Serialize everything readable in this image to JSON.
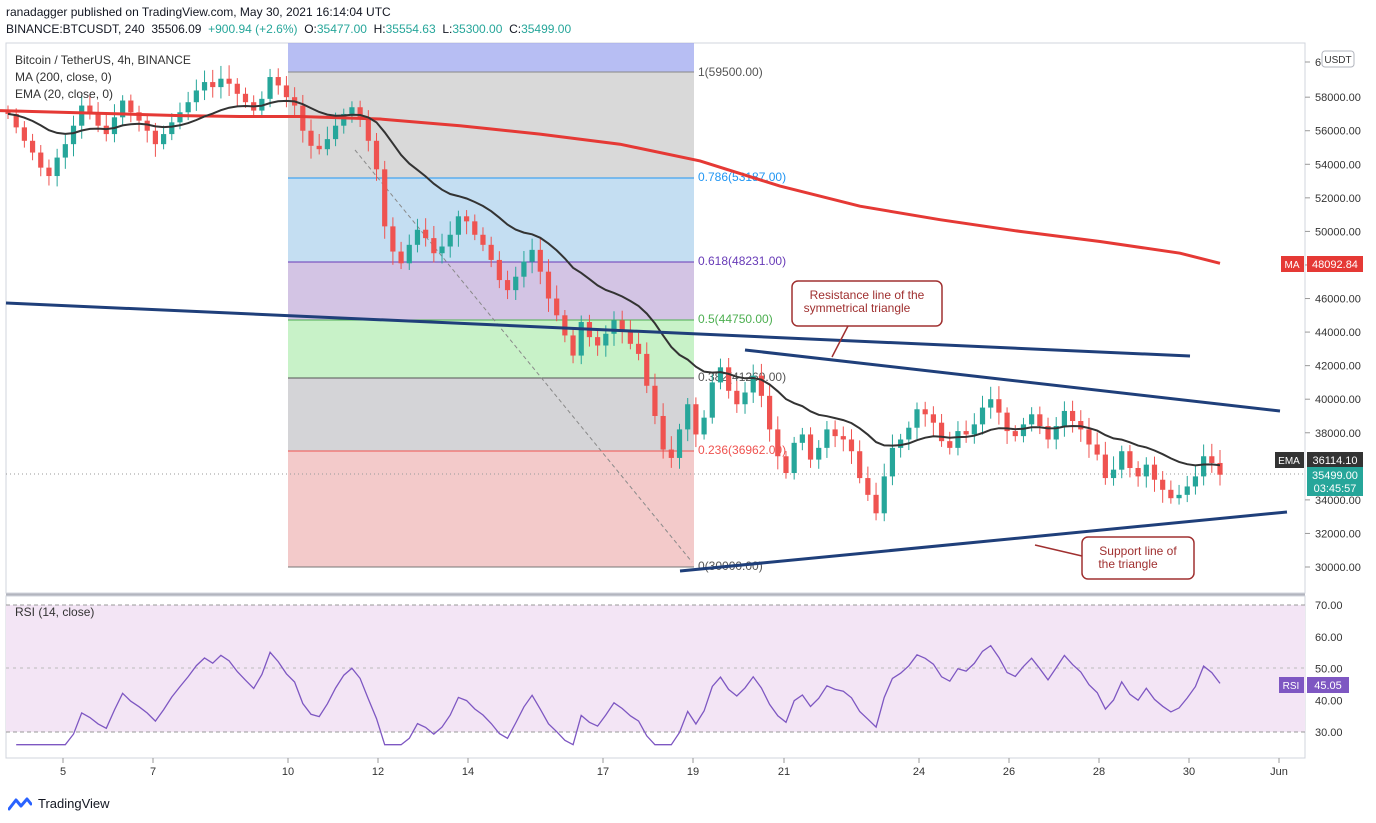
{
  "header": {
    "publisher_line": "ranadagger published on TradingView.com, May 30, 2021 16:14:04 UTC",
    "symbol": "BINANCE:BTCUSDT, 240",
    "last": "35506.09",
    "change": "+900.94 (+2.6%)",
    "o_label": "O:",
    "o": "35477.00",
    "h_label": "H:",
    "h": "35554.63",
    "l_label": "L:",
    "l": "35300.00",
    "c_label": "C:",
    "c": "35499.00"
  },
  "legend": {
    "title": "Bitcoin / TetherUS, 4h, BINANCE",
    "ma": "MA (200, close, 0)",
    "ema": "EMA (20, close, 0)",
    "rsi": "RSI (14, close)"
  },
  "colors": {
    "up": "#26a69a",
    "down": "#ef5350",
    "ma": "#e53935",
    "ema": "#333333",
    "trendline": "#1f3f7a",
    "rsi_line": "#7e57c2",
    "rsi_band": "#f3e5f5"
  },
  "price_axis": {
    "unit": "USDT",
    "ticks": [
      "6",
      "58000.00",
      "56000.00",
      "54000.00",
      "52000.00",
      "50000.00",
      "48000.00",
      "46000.00",
      "44000.00",
      "42000.00",
      "40000.00",
      "38000.00",
      "34000.00",
      "32000.00",
      "30000.00"
    ],
    "ma_tag": "MA",
    "ma_value": "48092.84",
    "ema_tag": "EMA",
    "ema_value": "36114.10",
    "price_value": "35499.00",
    "countdown": "03:45:57"
  },
  "rsi_axis": {
    "ticks": [
      "70.00",
      "60.00",
      "50.00",
      "40.00",
      "30.00"
    ],
    "tag": "RSI",
    "value": "45.05"
  },
  "time_axis": {
    "ticks": [
      "5",
      "7",
      "10",
      "12",
      "14",
      "17",
      "19",
      "21",
      "24",
      "26",
      "28",
      "30",
      "Jun"
    ]
  },
  "fib_labels": [
    "1(59500.00)",
    "0.786(53187.00)",
    "0.618(48231.00)",
    "0.5(44750.00)",
    "0.382(41269.00)",
    "0.236(36962.00)",
    "0(30000.00)"
  ],
  "annotations": {
    "resistance_l1": "Resistance line of the",
    "resistance_l2": "symmetrical triangle",
    "support_l1": "Support line of",
    "support_l2": "the triangle"
  },
  "footer": {
    "brand": "TradingView"
  },
  "chart_data": {
    "type": "candlestick",
    "title": "Bitcoin / TetherUS, 4h, BINANCE",
    "x_range": [
      "May 4",
      "Jun 1"
    ],
    "ylim": [
      29000,
      61000
    ],
    "rsi_ylim": [
      25,
      72
    ],
    "fib_retracement": {
      "high": 59500,
      "low": 30000,
      "levels": [
        [
          1,
          59500
        ],
        [
          0.786,
          53187
        ],
        [
          0.618,
          48231
        ],
        [
          0.5,
          44750
        ],
        [
          0.382,
          41269
        ],
        [
          0.236,
          36962
        ],
        [
          0,
          30000
        ]
      ]
    },
    "closes": [
      57000,
      56200,
      55400,
      54700,
      53800,
      53300,
      54400,
      55200,
      56300,
      57500,
      57000,
      56300,
      55800,
      56800,
      57800,
      57100,
      56600,
      56000,
      55200,
      55800,
      56500,
      57100,
      57700,
      58400,
      58900,
      58600,
      59100,
      58800,
      58200,
      57700,
      57200,
      57900,
      59200,
      58700,
      58000,
      57500,
      56000,
      55100,
      54900,
      55500,
      56300,
      57000,
      57400,
      56800,
      55400,
      53700,
      50300,
      48800,
      48100,
      49200,
      50100,
      49600,
      48700,
      49100,
      49800,
      50900,
      50600,
      49800,
      49200,
      48300,
      47100,
      46500,
      47300,
      48200,
      48900,
      47600,
      46000,
      45000,
      43800,
      42600,
      44600,
      43700,
      43200,
      43900,
      44700,
      44100,
      43300,
      42700,
      40800,
      39000,
      37000,
      36500,
      38200,
      39700,
      37900,
      38900,
      41000,
      41900,
      40500,
      39700,
      40400,
      41400,
      40200,
      38200,
      36600,
      35600,
      37400,
      37900,
      36400,
      37100,
      38200,
      37800,
      37600,
      36900,
      35300,
      34300,
      33200,
      35400,
      37100,
      37600,
      38300,
      39400,
      39100,
      38600,
      37500,
      37100,
      38100,
      37900,
      38500,
      39500,
      40000,
      39200,
      38100,
      37800,
      38500,
      39100,
      38400,
      37600,
      38400,
      39300,
      38700,
      38200,
      37300,
      36700,
      35300,
      35800,
      36900,
      35900,
      35400,
      36100,
      35200,
      34600,
      34100,
      34300,
      34800,
      35400,
      36600,
      36200,
      35499
    ],
    "ma200": [
      [
        0,
        57200
      ],
      [
        60,
        57100
      ],
      [
        120,
        57000
      ],
      [
        180,
        56900
      ],
      [
        240,
        56850
      ],
      [
        300,
        56850
      ],
      [
        380,
        56700
      ],
      [
        460,
        56300
      ],
      [
        540,
        55800
      ],
      [
        620,
        55200
      ],
      [
        700,
        54200
      ],
      [
        780,
        52700
      ],
      [
        860,
        51500
      ],
      [
        940,
        50700
      ],
      [
        1020,
        50000
      ],
      [
        1100,
        49400
      ],
      [
        1180,
        48700
      ],
      [
        1220,
        48100
      ]
    ],
    "series": [
      {
        "name": "MA (200, close, 0)",
        "last": 48092.84
      },
      {
        "name": "EMA (20, close, 0)",
        "last": 36114.1
      },
      {
        "name": "RSI (14, close)",
        "last": 45.05
      }
    ],
    "trendlines": [
      {
        "from": [
          "May 4",
          45700
        ],
        "to": [
          "May 22",
          42500
        ]
      },
      {
        "from": [
          "May 20",
          43000
        ],
        "to": [
          "May 31",
          39300
        ]
      },
      {
        "from": [
          "May 19",
          29700
        ],
        "to": [
          "May 31",
          33200
        ]
      }
    ]
  }
}
